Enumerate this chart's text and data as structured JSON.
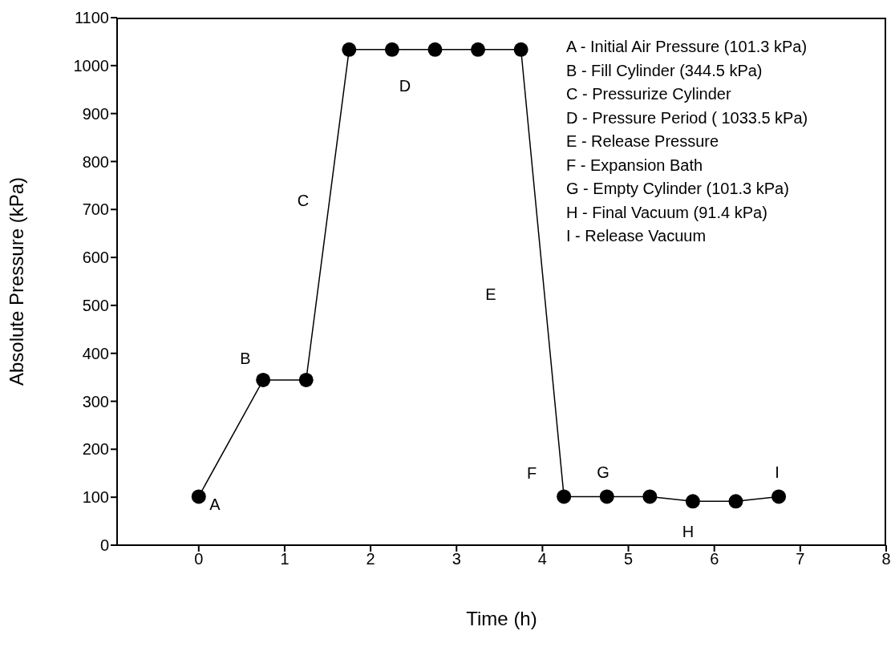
{
  "chart_data": {
    "type": "line",
    "xlabel": "Time (h)",
    "ylabel": "Absolute Pressure (kPa)",
    "x": [
      0,
      0.75,
      1.25,
      1.75,
      2.25,
      2.75,
      3.25,
      3.75,
      4.25,
      4.75,
      5.25,
      5.75,
      6.25,
      6.75
    ],
    "series": [
      {
        "color": "#000000",
        "values": [
          101.3,
          344.5,
          344.5,
          1033.5,
          1033.5,
          1033.5,
          1033.5,
          1033.5,
          101.3,
          101.3,
          101.3,
          91.4,
          91.4,
          101.3
        ]
      }
    ],
    "xlim": [
      -0.95,
      8
    ],
    "xticks": [
      0,
      1,
      2,
      3,
      4,
      5,
      6,
      7,
      8
    ],
    "ylim": [
      0,
      1100
    ],
    "yticks": [
      0,
      100,
      200,
      300,
      400,
      500,
      600,
      700,
      800,
      900,
      1000,
      1100
    ],
    "grid": false,
    "legend": false,
    "marker": "circle",
    "line_style": "solid",
    "annotations": [
      "A",
      "B",
      "C",
      "D",
      "E",
      "F",
      "G",
      "H",
      "I",
      "A - Initial Air Pressure (101.3 kPa)",
      "B - Fill Cylinder (344.5 kPa)",
      "C - Pressurize Cylinder",
      "D - Pressure Period ( 1033.5 kPa)",
      "E - Release Pressure",
      "F - Expansion Bath",
      "G - Empty Cylinder (101.3 kPa)",
      "H - Final Vacuum (91.4 kPa)",
      "I - Release Vacuum"
    ]
  }
}
